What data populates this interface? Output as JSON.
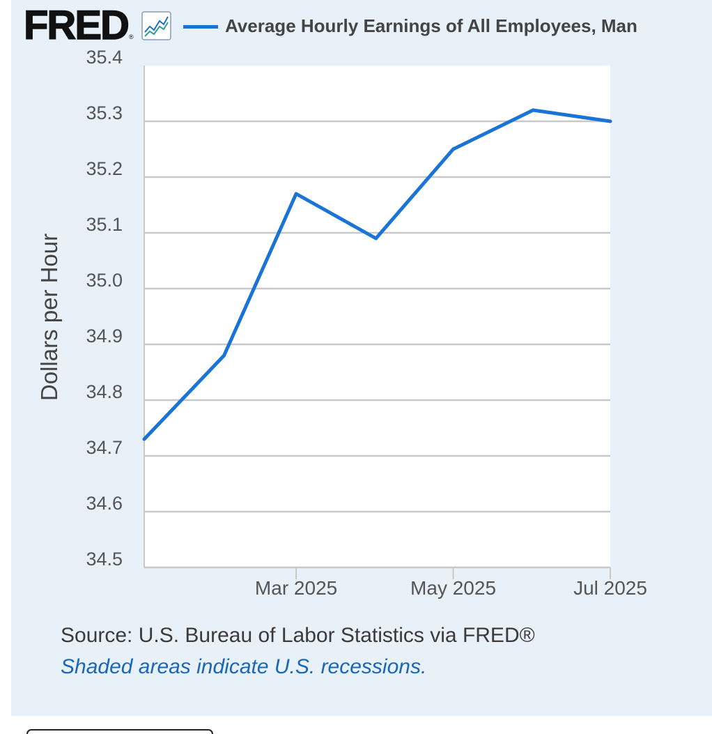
{
  "header": {
    "logo_text": "FRED",
    "logo_registered": "®",
    "chart_icon": "line-chart-icon"
  },
  "colors": {
    "panel": "#e8f0f8",
    "grid": "#c8c8c8",
    "link": "#1a66b8"
  },
  "chart_data": {
    "type": "line",
    "ylabel": "Dollars per Hour",
    "x": [
      "2025-01-01",
      "2025-02-01",
      "2025-03-01",
      "2025-04-01",
      "2025-05-01",
      "2025-06-01",
      "2025-07-01"
    ],
    "series": [
      {
        "name": "Average Hourly Earnings of All Employees, Man",
        "color": "#1a73d6",
        "values": [
          34.73,
          34.88,
          35.17,
          35.09,
          35.25,
          35.32,
          35.3
        ]
      }
    ],
    "xlim": [
      "2025-01-01",
      "2025-07-01"
    ],
    "ylim": [
      34.5,
      35.4
    ],
    "yticks": [
      {
        "value": 35.4,
        "label": "35.4"
      },
      {
        "value": 35.3,
        "label": "35.3"
      },
      {
        "value": 35.2,
        "label": "35.2"
      },
      {
        "value": 35.1,
        "label": "35.1"
      },
      {
        "value": 35.0,
        "label": "35.0"
      },
      {
        "value": 34.9,
        "label": "34.9"
      },
      {
        "value": 34.8,
        "label": "34.8"
      },
      {
        "value": 34.7,
        "label": "34.7"
      },
      {
        "value": 34.6,
        "label": "34.6"
      },
      {
        "value": 34.5,
        "label": "34.5"
      }
    ],
    "xticks": [
      {
        "value": "2025-03-01",
        "label": "Mar 2025"
      },
      {
        "value": "2025-05-01",
        "label": "May 2025"
      },
      {
        "value": "2025-07-01",
        "label": "Jul 2025"
      }
    ],
    "grid": true,
    "legend": "top"
  },
  "footer": {
    "source": "Source: U.S. Bureau of Labor Statistics via FRED®",
    "recessions_note": "Shaded areas indicate U.S. recessions."
  }
}
